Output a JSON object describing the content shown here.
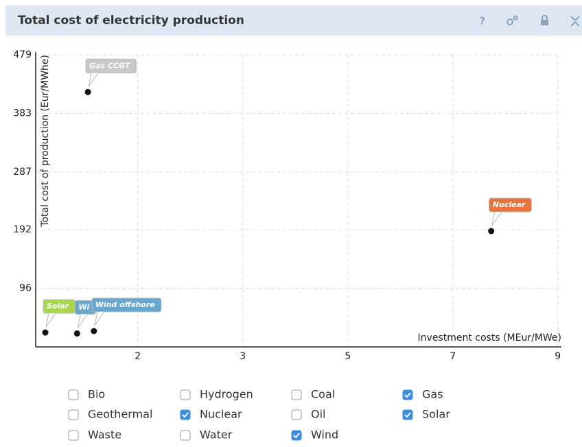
{
  "header": {
    "title": "Total cost of electricity production",
    "help": "?"
  },
  "chart_data": {
    "type": "scatter",
    "xlabel": "Investment costs (MEur/MWe)",
    "ylabel": "Total cost of production (Eur/MWhe)",
    "xlim": [
      0,
      8.76
    ],
    "xticks": [
      {
        "value": 1.7,
        "label": "2"
      },
      {
        "value": 3.45,
        "label": "3"
      },
      {
        "value": 5.2,
        "label": "5"
      },
      {
        "value": 6.95,
        "label": "7"
      },
      {
        "value": 8.7,
        "label": "9"
      }
    ],
    "ylim": [
      0,
      479
    ],
    "yticks": [
      96,
      192,
      287,
      383,
      479
    ],
    "grid": true,
    "series": [
      {
        "name": "Gas CCGT",
        "color": "#c8c8c8",
        "x": [
          0.87
        ],
        "values": [
          418
        ]
      },
      {
        "name": "Nuclear",
        "color": "#e8743b",
        "x": [
          7.59
        ],
        "values": [
          190
        ]
      },
      {
        "name": "Solar",
        "color": "#a8d84a",
        "x": [
          0.16
        ],
        "values": [
          23.6
        ]
      },
      {
        "name": "Wi",
        "color": "#6aa7cf",
        "x": [
          0.69
        ],
        "values": [
          22
        ]
      },
      {
        "name": "Wind offshore",
        "color": "#6aa7cf",
        "x": [
          0.97
        ],
        "values": [
          26
        ]
      }
    ]
  },
  "filters": [
    {
      "label": "Bio",
      "checked": false
    },
    {
      "label": "Hydrogen",
      "checked": false
    },
    {
      "label": "Coal",
      "checked": false
    },
    {
      "label": "Gas",
      "checked": true
    },
    {
      "label": "Geothermal",
      "checked": false
    },
    {
      "label": "Nuclear",
      "checked": true
    },
    {
      "label": "Oil",
      "checked": false
    },
    {
      "label": "Solar",
      "checked": true
    },
    {
      "label": "Waste",
      "checked": false
    },
    {
      "label": "Water",
      "checked": false
    },
    {
      "label": "Wind",
      "checked": true
    }
  ]
}
